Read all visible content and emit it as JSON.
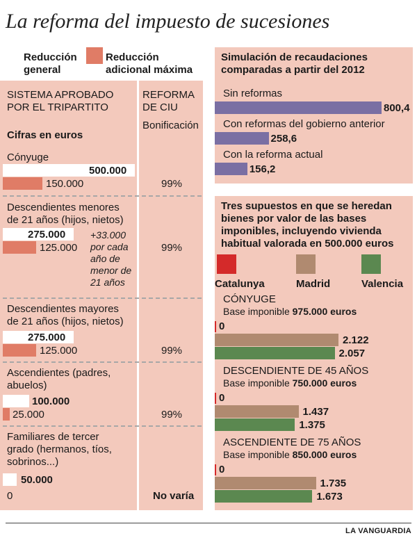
{
  "title": "La reforma del impuesto de sucesiones",
  "legend_left": {
    "general_line1": "Reducción",
    "general_line2": "general",
    "max_line1": "Reducción",
    "max_line2": "adicional máxima"
  },
  "left": {
    "system_line1": "SISTEMA APROBADO",
    "system_line2": "POR EL TRIPARTITO",
    "ciu_line1": "REFORMA",
    "ciu_line2": "DE CIU",
    "bonus_header": "Bonificación",
    "units": "Cifras en euros",
    "rows": [
      {
        "label1": "Cónyuge",
        "label2": "",
        "general": "500.000",
        "max": "150.000",
        "bonus": "99%"
      },
      {
        "label1": "Descendientes menores",
        "label2": "de 21 años (hijos, nietos)",
        "general": "275.000",
        "max": "125.000",
        "bonus": "99%",
        "note": [
          "+33.000",
          "por cada",
          "año de",
          "menor de",
          "21 años"
        ]
      },
      {
        "label1": "Descendientes mayores",
        "label2": "de 21 años (hijos, nietos)",
        "general": "275.000",
        "max": "125.000",
        "bonus": "99%"
      },
      {
        "label1": "Ascendientes (padres,",
        "label2": "abuelos)",
        "general": "100.000",
        "max": "25.000",
        "bonus": "99%"
      },
      {
        "label1": "Familiares de tercer",
        "label2": "grado (hermanos, tíos,",
        "label3": "sobrinos...)",
        "general": "50.000",
        "max": "0",
        "bonus": "No varía"
      }
    ]
  },
  "chart_data": [
    {
      "type": "bar",
      "title": "Simulación de recaudaciones comparadas a partir del 2012",
      "title_line1": "Simulación de recaudaciones",
      "title_line2": "comparadas a partir del 2012",
      "categories": [
        "Sin reformas",
        "Con reformas del gobierno anterior",
        "Con la reforma actual"
      ],
      "values": [
        800.4,
        258.6,
        156.2
      ],
      "value_labels": [
        "800,4",
        "258,6",
        "156,2"
      ],
      "color": "#7a6fa3"
    },
    {
      "type": "bar",
      "title": "Tres supuestos en que se heredan bienes por valor de las bases imponibles, incluyendo vivienda habitual valorada en 500.000 euros",
      "title_lines": [
        "Tres supuestos en que se heredan",
        "bienes por valor de las bases",
        "imponibles, incluyendo vivienda",
        "habitual valorada en 500.000 euros"
      ],
      "series_legend": [
        {
          "name": "Catalunya",
          "color": "#d42a2a"
        },
        {
          "name": "Madrid",
          "color": "#b08a70"
        },
        {
          "name": "Valencia",
          "color": "#5b8850"
        }
      ],
      "groups": [
        {
          "name": "CÓNYUGE",
          "base_label": "Base imponible",
          "base_value": "975.000 euros",
          "values": [
            0,
            2122,
            2057
          ],
          "value_labels": [
            "0",
            "2.122",
            "2.057"
          ]
        },
        {
          "name": "DESCENDIENTE DE 45 AÑOS",
          "base_label": "Base imponible",
          "base_value": "750.000 euros",
          "values": [
            0,
            1437,
            1375
          ],
          "value_labels": [
            "0",
            "1.437",
            "1.375"
          ]
        },
        {
          "name": "ASCENDIENTE DE 75 AÑOS",
          "base_label": "Base imponible",
          "base_value": "850.000 euros",
          "values": [
            0,
            1735,
            1673
          ],
          "value_labels": [
            "0",
            "1.735",
            "1.673"
          ]
        }
      ]
    }
  ],
  "footer": "LA VANGUARDIA"
}
